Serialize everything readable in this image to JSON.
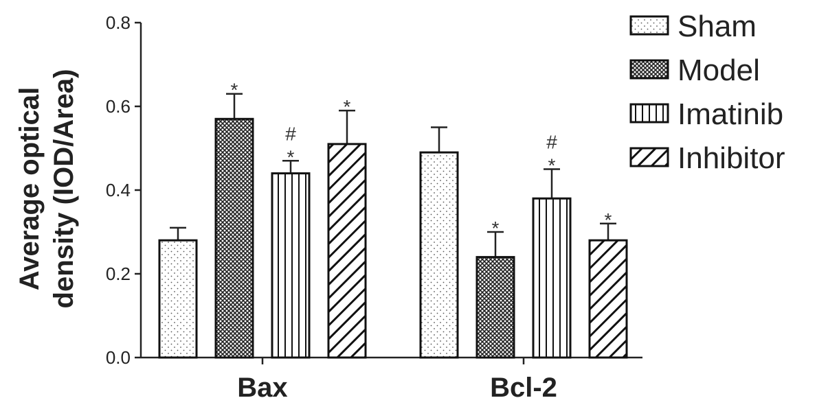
{
  "chart_data": {
    "type": "bar",
    "ylabel_lines": [
      "Average optical",
      "density (IOD/Area)"
    ],
    "xlabel": "",
    "categories": [
      "Bax",
      "Bcl-2"
    ],
    "yticks": [
      "0.0",
      "0.2",
      "0.4",
      "0.6",
      "0.8"
    ],
    "ylim": [
      0,
      0.8
    ],
    "legend_position": "top-right",
    "series": [
      {
        "name": "Sham",
        "pattern": "dots",
        "values": [
          0.28,
          0.49
        ],
        "errors": [
          0.03,
          0.06
        ],
        "annotations": [
          "",
          ""
        ]
      },
      {
        "name": "Model",
        "pattern": "crosshatch",
        "values": [
          0.57,
          0.24
        ],
        "errors": [
          0.06,
          0.06
        ],
        "annotations": [
          "*",
          "*"
        ]
      },
      {
        "name": "Imatinib",
        "pattern": "vertical-lines",
        "values": [
          0.44,
          0.38
        ],
        "errors": [
          0.03,
          0.07
        ],
        "annotations": [
          "#\n*",
          "#\n*"
        ]
      },
      {
        "name": "Inhibitor",
        "pattern": "diagonal-lines",
        "values": [
          0.51,
          0.28
        ],
        "errors": [
          0.08,
          0.04
        ],
        "annotations": [
          "*",
          "*"
        ]
      }
    ]
  }
}
